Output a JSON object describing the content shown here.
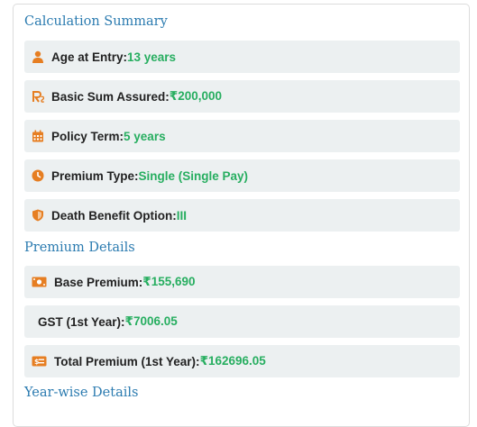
{
  "colors": {
    "accent": "#e67e22",
    "value": "#27ae60",
    "heading": "#2b7bb0",
    "row_bg": "#ecf0f1"
  },
  "calculation_summary": {
    "title": "Calculation Summary",
    "rows": [
      {
        "icon": "user-icon",
        "label": "Age at Entry:",
        "value": "13 years"
      },
      {
        "icon": "rupee-icon",
        "label": "Basic Sum Assured:",
        "value": "₹200,000"
      },
      {
        "icon": "calendar-icon",
        "label": "Policy Term:",
        "value": "5 years"
      },
      {
        "icon": "clock-icon",
        "label": "Premium Type:",
        "value": "Single (Single Pay)"
      },
      {
        "icon": "shield-icon",
        "label": "Death Benefit Option:",
        "value": "III"
      }
    ]
  },
  "premium_details": {
    "title": "Premium Details",
    "rows": [
      {
        "icon": "money-icon",
        "label": "Base Premium:",
        "value": "₹155,690"
      },
      {
        "icon": "",
        "label": "GST (1st Year):",
        "value": "₹7006.05"
      },
      {
        "icon": "bill-icon",
        "label": "Total Premium (1st Year):",
        "value": "₹162696.05"
      }
    ]
  },
  "year_wise_details": {
    "title": "Year-wise Details"
  }
}
